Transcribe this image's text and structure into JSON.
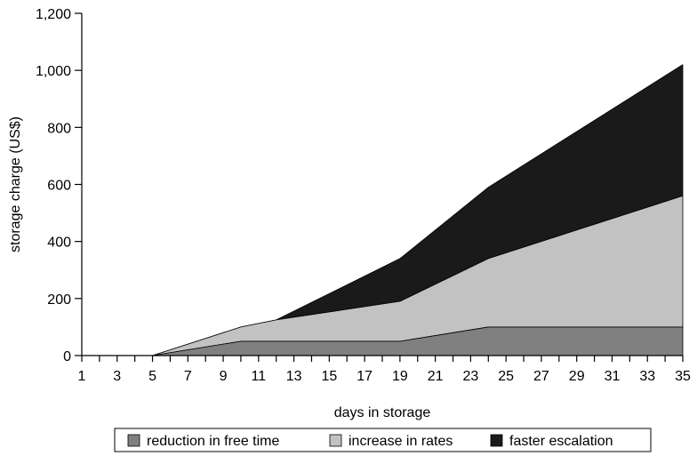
{
  "chart_data": {
    "type": "area",
    "stacked": true,
    "xlabel": "days in storage",
    "ylabel": "storage charge (US$)",
    "xlim": [
      1,
      35
    ],
    "ylim": [
      0,
      1200
    ],
    "x_ticks": [
      1,
      3,
      5,
      7,
      9,
      11,
      13,
      15,
      17,
      19,
      21,
      23,
      25,
      27,
      29,
      31,
      33,
      35
    ],
    "y_ticks": [
      0,
      200,
      400,
      600,
      800,
      1000,
      1200
    ],
    "y_tick_labels": [
      "0",
      "200",
      "400",
      "600",
      "800",
      "1,000",
      "1,200"
    ],
    "grid": false,
    "legend_position": "bottom",
    "series": [
      {
        "name": "reduction in free time",
        "color": "#808080",
        "points": [
          [
            5,
            0
          ],
          [
            10,
            50
          ],
          [
            19,
            50
          ],
          [
            24,
            100
          ],
          [
            35,
            100
          ]
        ]
      },
      {
        "name": "increase in rates",
        "color": "#c2c2c2",
        "points": [
          [
            5,
            0
          ],
          [
            10,
            100
          ],
          [
            12,
            125
          ],
          [
            19,
            190
          ],
          [
            24,
            340
          ],
          [
            35,
            560
          ]
        ]
      },
      {
        "name": "faster escalation",
        "color": "#1a1a1a",
        "points": [
          [
            5,
            0
          ],
          [
            10,
            100
          ],
          [
            12,
            125
          ],
          [
            19,
            340
          ],
          [
            24,
            590
          ],
          [
            35,
            1020
          ]
        ]
      }
    ]
  }
}
